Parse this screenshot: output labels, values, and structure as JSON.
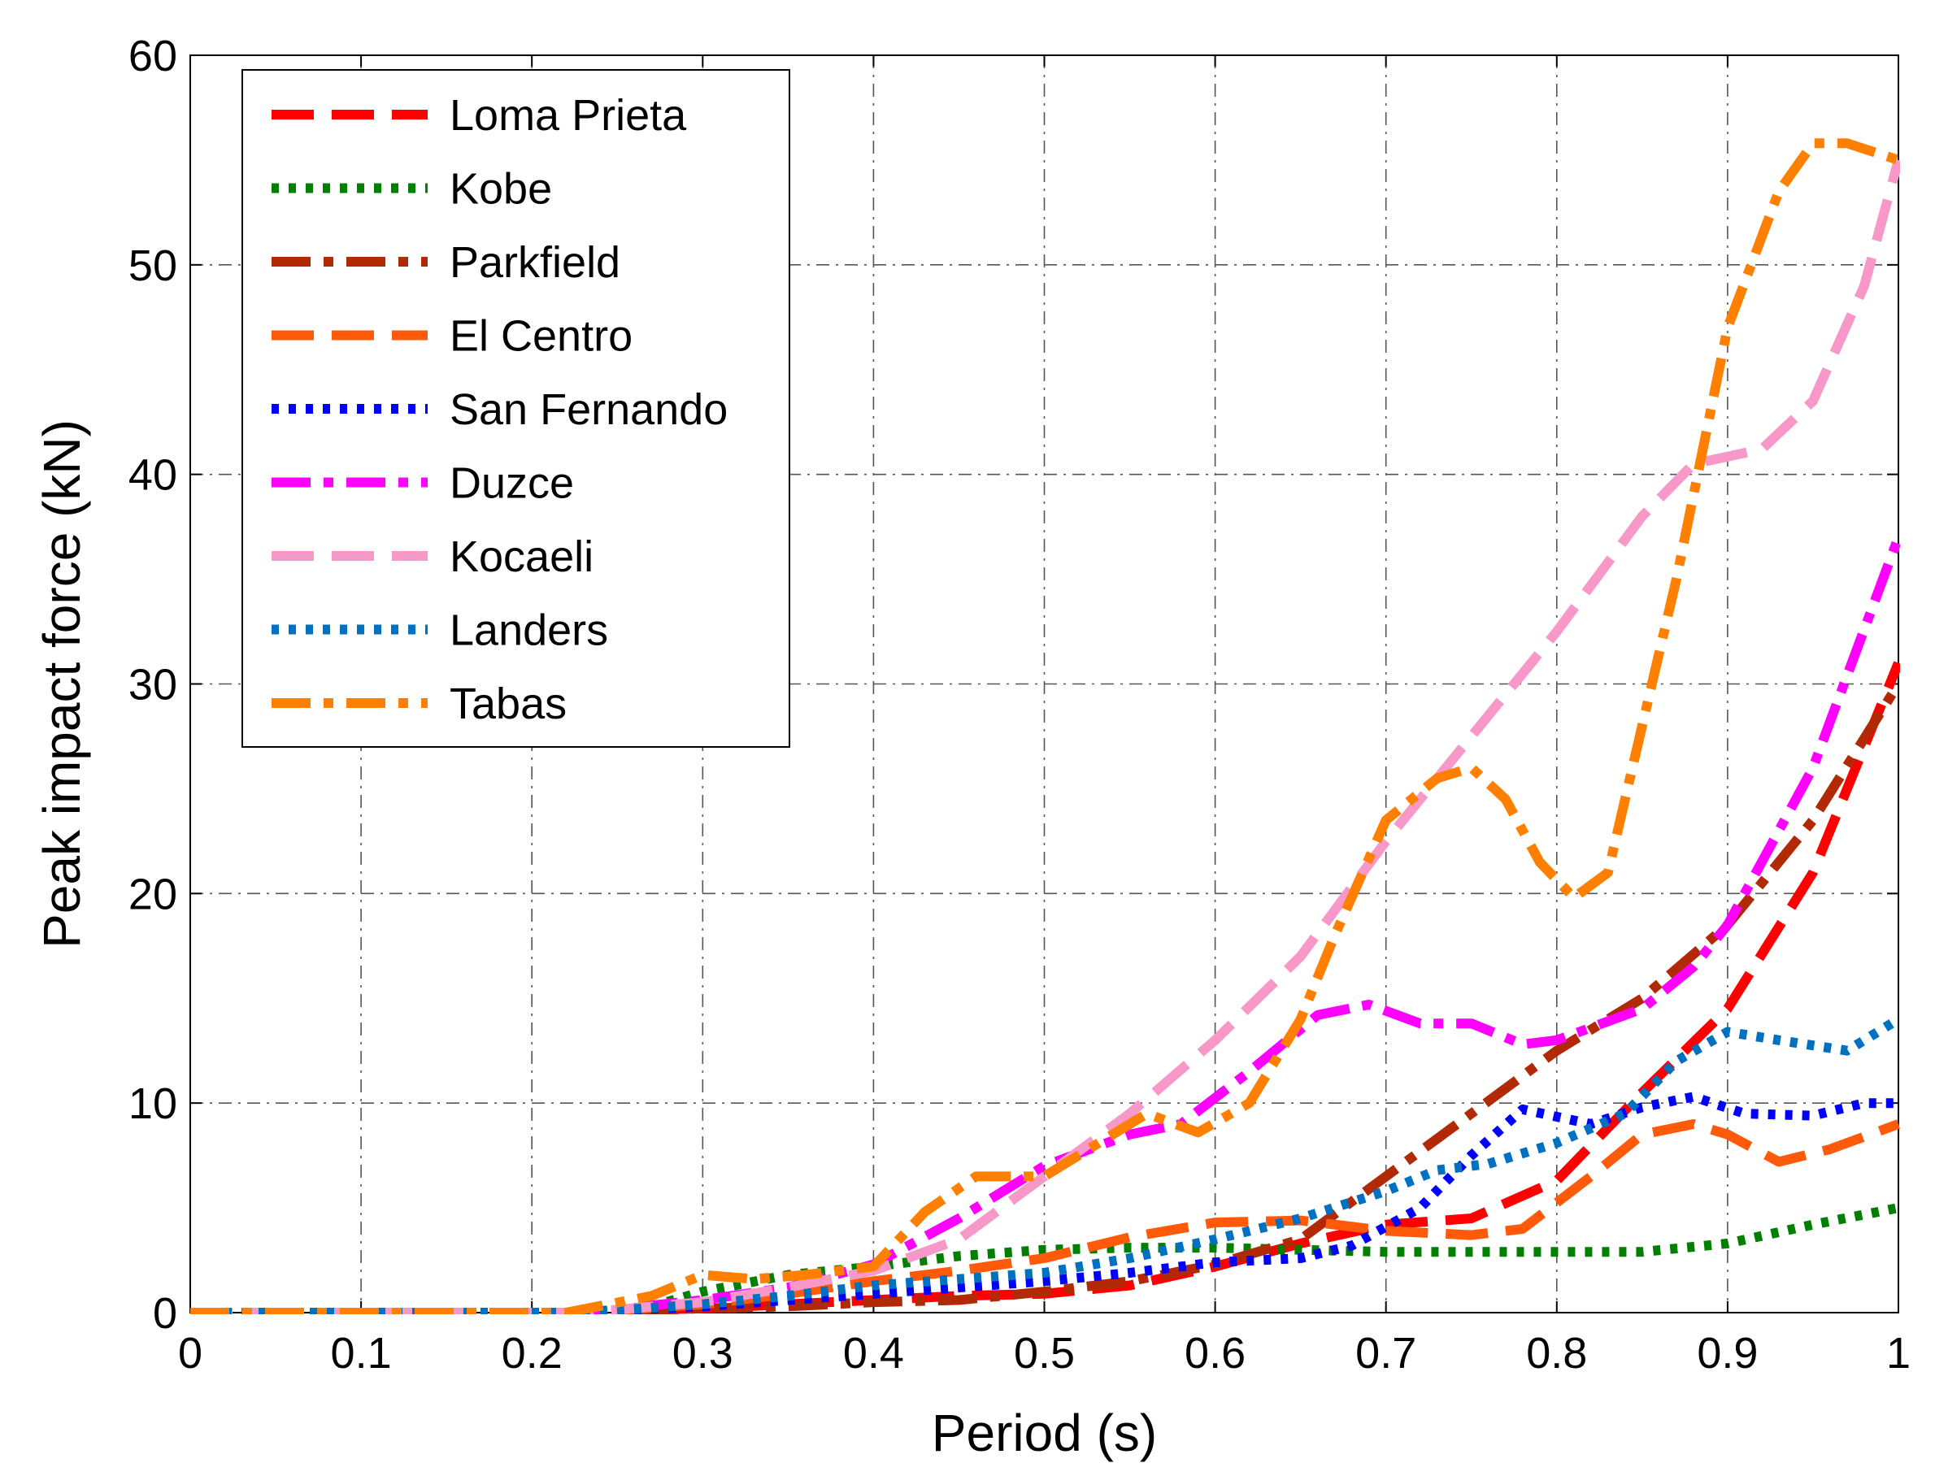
{
  "chart_data": {
    "type": "line",
    "title": "",
    "xlabel": "Period (s)",
    "ylabel": "Peak impact force (kN)",
    "xlim": [
      0,
      1
    ],
    "ylim": [
      0,
      60
    ],
    "xticks": [
      0,
      0.1,
      0.2,
      0.3,
      0.4,
      0.5,
      0.6,
      0.7,
      0.8,
      0.9,
      1
    ],
    "xtick_labels": [
      "0",
      "0.1",
      "0.2",
      "0.3",
      "0.4",
      "0.5",
      "0.6",
      "0.7",
      "0.8",
      "0.9",
      "1"
    ],
    "yticks": [
      0,
      10,
      20,
      30,
      40,
      50,
      60
    ],
    "ytick_labels": [
      "0",
      "10",
      "20",
      "30",
      "40",
      "50",
      "60"
    ],
    "grid": true,
    "legend_position": "top-left",
    "series": [
      {
        "name": "Loma Prieta",
        "color": "#ff0000",
        "style": "dashed",
        "x": [
          0,
          0.23,
          0.25,
          0.3,
          0.35,
          0.4,
          0.45,
          0.5,
          0.55,
          0.6,
          0.65,
          0.7,
          0.75,
          0.8,
          0.85,
          0.9,
          0.95,
          1.0
        ],
        "y": [
          0,
          0,
          0.1,
          0.2,
          0.4,
          0.6,
          0.8,
          0.9,
          1.3,
          2.2,
          3.3,
          4.2,
          4.5,
          6.3,
          10.5,
          14.5,
          21.0,
          31.0
        ]
      },
      {
        "name": "Kobe",
        "color": "#007f00",
        "style": "dotted",
        "x": [
          0,
          0.23,
          0.27,
          0.3,
          0.35,
          0.4,
          0.45,
          0.5,
          0.55,
          0.6,
          0.65,
          0.7,
          0.75,
          0.8,
          0.85,
          0.9,
          0.95,
          1.0
        ],
        "y": [
          0,
          0,
          0.3,
          1.0,
          1.8,
          2.2,
          2.7,
          3.0,
          3.1,
          3.1,
          3.0,
          2.9,
          2.9,
          2.9,
          2.9,
          3.3,
          4.2,
          5.0
        ]
      },
      {
        "name": "Parkfield",
        "color": "#b22a05",
        "style": "dashdot",
        "x": [
          0,
          0.23,
          0.3,
          0.35,
          0.4,
          0.45,
          0.5,
          0.55,
          0.6,
          0.65,
          0.7,
          0.75,
          0.8,
          0.85,
          0.9,
          0.95,
          1.0
        ],
        "y": [
          0,
          0,
          0.2,
          0.3,
          0.5,
          0.6,
          1.0,
          1.5,
          2.3,
          3.5,
          6.5,
          9.5,
          12.5,
          15.0,
          18.5,
          23.5,
          30.0
        ]
      },
      {
        "name": "El Centro",
        "color": "#ff5a0a",
        "style": "dashed",
        "x": [
          0,
          0.23,
          0.3,
          0.35,
          0.4,
          0.45,
          0.5,
          0.55,
          0.6,
          0.65,
          0.7,
          0.75,
          0.78,
          0.82,
          0.85,
          0.88,
          0.9,
          0.93,
          0.96,
          1.0
        ],
        "y": [
          0,
          0,
          0.4,
          0.9,
          1.5,
          2.0,
          2.6,
          3.6,
          4.3,
          4.4,
          3.9,
          3.7,
          4.0,
          6.5,
          8.5,
          9.0,
          8.5,
          7.2,
          7.8,
          9.0
        ]
      },
      {
        "name": "San Fernando",
        "color": "#0000ff",
        "style": "dotted",
        "x": [
          0,
          0.23,
          0.25,
          0.3,
          0.35,
          0.4,
          0.45,
          0.5,
          0.55,
          0.6,
          0.65,
          0.68,
          0.72,
          0.75,
          0.78,
          0.82,
          0.85,
          0.88,
          0.91,
          0.95,
          0.98,
          1.0
        ],
        "y": [
          0,
          0,
          0.1,
          0.3,
          0.6,
          0.9,
          1.2,
          1.5,
          1.9,
          2.4,
          2.6,
          3.2,
          5.0,
          7.5,
          9.7,
          9.0,
          9.8,
          10.3,
          9.5,
          9.4,
          10.0,
          10.0
        ]
      },
      {
        "name": "Duzce",
        "color": "#ff00ff",
        "style": "dashdot",
        "x": [
          0,
          0.23,
          0.3,
          0.35,
          0.4,
          0.45,
          0.5,
          0.55,
          0.58,
          0.62,
          0.66,
          0.69,
          0.72,
          0.75,
          0.78,
          0.8,
          0.85,
          0.88,
          0.9,
          0.95,
          1.0
        ],
        "y": [
          0,
          0,
          0.6,
          1.2,
          2.3,
          4.5,
          7.0,
          8.5,
          9.0,
          11.5,
          14.2,
          14.7,
          13.8,
          13.8,
          12.8,
          13.0,
          14.5,
          16.5,
          18.5,
          26.0,
          37.0
        ]
      },
      {
        "name": "Kocaeli",
        "color": "#f898c8",
        "style": "dashed",
        "x": [
          0,
          0.23,
          0.3,
          0.35,
          0.4,
          0.45,
          0.5,
          0.55,
          0.6,
          0.65,
          0.7,
          0.75,
          0.8,
          0.85,
          0.88,
          0.92,
          0.95,
          0.98,
          1.0
        ],
        "y": [
          0,
          0,
          0.5,
          1.2,
          2.0,
          3.5,
          6.5,
          9.5,
          13.0,
          17.0,
          22.5,
          27.5,
          32.5,
          38.0,
          40.5,
          41.2,
          43.5,
          49.0,
          55.0
        ]
      },
      {
        "name": "Landers",
        "color": "#0070c0",
        "style": "dotted",
        "x": [
          0,
          0.23,
          0.3,
          0.35,
          0.4,
          0.45,
          0.5,
          0.55,
          0.6,
          0.65,
          0.7,
          0.73,
          0.76,
          0.8,
          0.84,
          0.87,
          0.9,
          0.93,
          0.97,
          1.0
        ],
        "y": [
          0,
          0,
          0.4,
          0.8,
          1.3,
          1.6,
          1.9,
          2.6,
          3.5,
          4.5,
          5.8,
          6.8,
          7.1,
          8.1,
          9.5,
          12.0,
          13.4,
          13.0,
          12.5,
          14.0
        ]
      },
      {
        "name": "Tabas",
        "color": "#ff8000",
        "style": "dashdot",
        "x": [
          0,
          0.22,
          0.27,
          0.3,
          0.33,
          0.36,
          0.4,
          0.43,
          0.46,
          0.5,
          0.53,
          0.56,
          0.59,
          0.62,
          0.65,
          0.67,
          0.7,
          0.73,
          0.75,
          0.77,
          0.79,
          0.81,
          0.83,
          0.85,
          0.87,
          0.9,
          0.93,
          0.95,
          0.97,
          1.0
        ],
        "y": [
          0,
          0,
          0.8,
          1.8,
          1.6,
          1.8,
          2.2,
          4.8,
          6.5,
          6.5,
          8.0,
          9.5,
          8.6,
          10.0,
          14.0,
          18.0,
          23.5,
          25.5,
          26.0,
          24.5,
          21.5,
          19.8,
          21.0,
          28.0,
          35.0,
          47.0,
          53.5,
          55.8,
          55.8,
          55.0
        ]
      }
    ]
  }
}
